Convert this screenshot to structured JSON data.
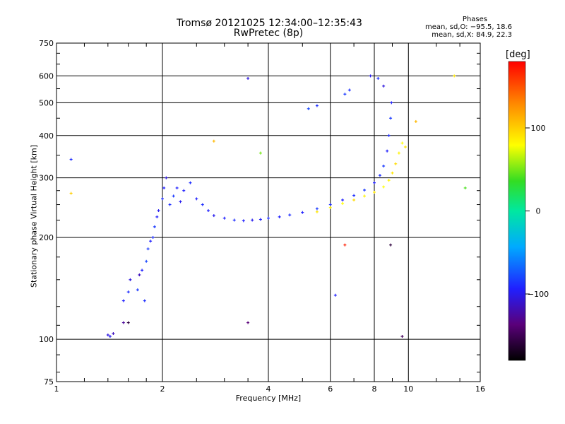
{
  "header": {
    "title": "Tromsø 20121025 12:34:00–12:35:43",
    "subtitle": "RwPretec (8p)"
  },
  "stats": {
    "heading": "Phases",
    "o_line": "mean, sd,O: −95.5, 18.6",
    "x_line": "mean, sd,X:  84.9, 22.3"
  },
  "colorbar": {
    "unit": "[deg]",
    "ticks": [
      {
        "value": 100,
        "label": "100"
      },
      {
        "value": 0,
        "label": "0"
      },
      {
        "value": -100,
        "label": "−100"
      }
    ],
    "range": [
      -180,
      180
    ],
    "colormap": "rainbow (black → purple → blue → cyan → green → yellow → orange → red)"
  },
  "chart_data": {
    "type": "scatter",
    "xlabel": "Frequency [MHz]",
    "ylabel": "Stationary phase Virtual Height [km]",
    "x_scale": "log",
    "y_scale": "log",
    "xlim": [
      1,
      16
    ],
    "ylim": [
      75,
      750
    ],
    "grid": true,
    "x_ticks": [
      {
        "value": 1,
        "label": "1"
      },
      {
        "value": 2,
        "label": "2"
      },
      {
        "value": 4,
        "label": "4"
      },
      {
        "value": 6,
        "label": "6"
      },
      {
        "value": 8,
        "label": "8"
      },
      {
        "value": 10,
        "label": "10"
      },
      {
        "value": 16,
        "label": "16"
      }
    ],
    "x_grid": [
      2,
      4,
      6,
      8,
      10
    ],
    "y_ticks": [
      {
        "value": 75,
        "label": "75"
      },
      {
        "value": 100,
        "label": "100"
      },
      {
        "value": 200,
        "label": "200"
      },
      {
        "value": 300,
        "label": "300"
      },
      {
        "value": 400,
        "label": "400"
      },
      {
        "value": 500,
        "label": "500"
      },
      {
        "value": 600,
        "label": "600"
      },
      {
        "value": 750,
        "label": "750"
      }
    ],
    "y_grid": [
      100,
      200,
      300,
      400,
      500,
      600
    ],
    "series": [
      {
        "mode": "O",
        "points": [
          [
            1.4,
            103,
            -110
          ],
          [
            1.42,
            102,
            -105
          ],
          [
            1.45,
            104,
            -120
          ],
          [
            1.55,
            112,
            -130
          ],
          [
            1.6,
            112,
            -160
          ],
          [
            1.55,
            130,
            -100
          ],
          [
            1.6,
            138,
            -95
          ],
          [
            1.62,
            150,
            -110
          ],
          [
            1.7,
            140,
            -90
          ],
          [
            1.72,
            155,
            -120
          ],
          [
            1.75,
            160,
            -100
          ],
          [
            1.78,
            130,
            -95
          ],
          [
            1.8,
            170,
            -85
          ],
          [
            1.82,
            185,
            -90
          ],
          [
            1.85,
            195,
            -100
          ],
          [
            1.88,
            200,
            -95
          ],
          [
            1.9,
            215,
            -90
          ],
          [
            1.93,
            230,
            -100
          ],
          [
            1.95,
            240,
            -105
          ],
          [
            2.0,
            260,
            -95
          ],
          [
            2.02,
            280,
            -100
          ],
          [
            2.05,
            300,
            -110
          ],
          [
            2.1,
            250,
            -95
          ],
          [
            2.15,
            265,
            -90
          ],
          [
            2.2,
            280,
            -100
          ],
          [
            2.25,
            255,
            -105
          ],
          [
            2.3,
            275,
            -100
          ],
          [
            2.4,
            290,
            -95
          ],
          [
            2.5,
            260,
            -100
          ],
          [
            2.6,
            250,
            -95
          ],
          [
            2.7,
            240,
            -100
          ],
          [
            2.8,
            232,
            -105
          ],
          [
            3.0,
            228,
            -100
          ],
          [
            3.2,
            225,
            -95
          ],
          [
            3.4,
            224,
            -100
          ],
          [
            3.6,
            225,
            -105
          ],
          [
            3.8,
            226,
            -100
          ],
          [
            4.0,
            228,
            -95
          ],
          [
            4.3,
            230,
            -100
          ],
          [
            4.6,
            233,
            -95
          ],
          [
            5.0,
            237,
            -100
          ],
          [
            5.5,
            243,
            -90
          ],
          [
            6.0,
            250,
            -95
          ],
          [
            6.5,
            258,
            -100
          ],
          [
            7.0,
            266,
            -95
          ],
          [
            7.5,
            276,
            -90
          ],
          [
            8.0,
            290,
            -100
          ],
          [
            8.3,
            305,
            -95
          ],
          [
            8.5,
            325,
            -90
          ],
          [
            8.7,
            360,
            -100
          ],
          [
            8.8,
            400,
            -95
          ],
          [
            8.9,
            450,
            -90
          ],
          [
            8.95,
            500,
            -100
          ],
          [
            8.5,
            560,
            -110
          ],
          [
            8.2,
            590,
            -95
          ],
          [
            7.8,
            600,
            -105
          ],
          [
            6.8,
            545,
            -95
          ],
          [
            6.6,
            530,
            -90
          ],
          [
            5.2,
            480,
            -85
          ],
          [
            5.5,
            490,
            -95
          ],
          [
            6.2,
            135,
            -100
          ],
          [
            3.5,
            590,
            -110
          ],
          [
            1.1,
            340,
            -95
          ],
          [
            3.5,
            112,
            -140
          ],
          [
            9.6,
            102,
            -150
          ]
        ]
      },
      {
        "mode": "X",
        "points": [
          [
            5.5,
            238,
            90
          ],
          [
            6.0,
            245,
            85
          ],
          [
            6.5,
            252,
            80
          ],
          [
            7.0,
            258,
            95
          ],
          [
            7.5,
            265,
            85
          ],
          [
            8.0,
            272,
            90
          ],
          [
            8.5,
            282,
            80
          ],
          [
            8.8,
            295,
            85
          ],
          [
            9.0,
            310,
            90
          ],
          [
            9.2,
            330,
            95
          ],
          [
            9.4,
            355,
            85
          ],
          [
            9.6,
            380,
            80
          ],
          [
            9.8,
            370,
            90
          ],
          [
            10.5,
            440,
            110
          ],
          [
            13.5,
            600,
            90
          ],
          [
            14.5,
            280,
            40
          ],
          [
            6.6,
            190,
            170
          ],
          [
            8.9,
            190,
            -160
          ],
          [
            1.1,
            270,
            100
          ],
          [
            2.8,
            385,
            110
          ],
          [
            3.8,
            355,
            50
          ]
        ]
      }
    ]
  }
}
